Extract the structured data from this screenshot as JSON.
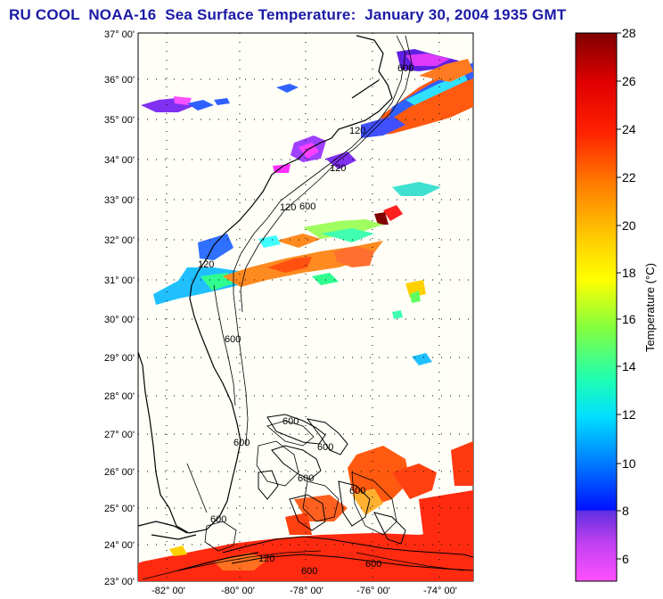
{
  "title": "RU COOL  NOAA-16  Sea Surface Temperature:  January 30, 2004 1935 GMT",
  "map": {
    "lat_labels": [
      "37° 00'",
      "36° 00'",
      "35° 00'",
      "34° 00'",
      "33° 00'",
      "32° 00'",
      "31° 00'",
      "30° 00'",
      "29° 00'",
      "28° 00'",
      "27° 00'",
      "26° 00'",
      "25° 00'",
      "24° 00'",
      "23° 00'"
    ],
    "lon_labels": [
      "-82° 00'",
      "-80° 00'",
      "-78° 00'",
      "-76° 00'",
      "-74° 00'"
    ],
    "contour_labels": [
      "600",
      "120",
      "120",
      "600",
      "120",
      "600",
      "600",
      "120",
      "600",
      "600",
      "600",
      "600",
      "600",
      "120",
      "600",
      "600"
    ]
  },
  "colorbar": {
    "label": "Temperature (°C)",
    "ticks": [
      "28",
      "26",
      "24",
      "22",
      "20",
      "18",
      "16",
      "14",
      "12",
      "10",
      "8",
      "6"
    ],
    "colors": {
      "top": "#800000",
      "red": "#ff0000",
      "orange": "#ff8000",
      "yellow": "#ffff00",
      "green": "#40ff40",
      "cyan": "#00ffff",
      "blue": "#0040ff",
      "purple": "#8000ff",
      "magenta": "#ff40ff"
    }
  }
}
